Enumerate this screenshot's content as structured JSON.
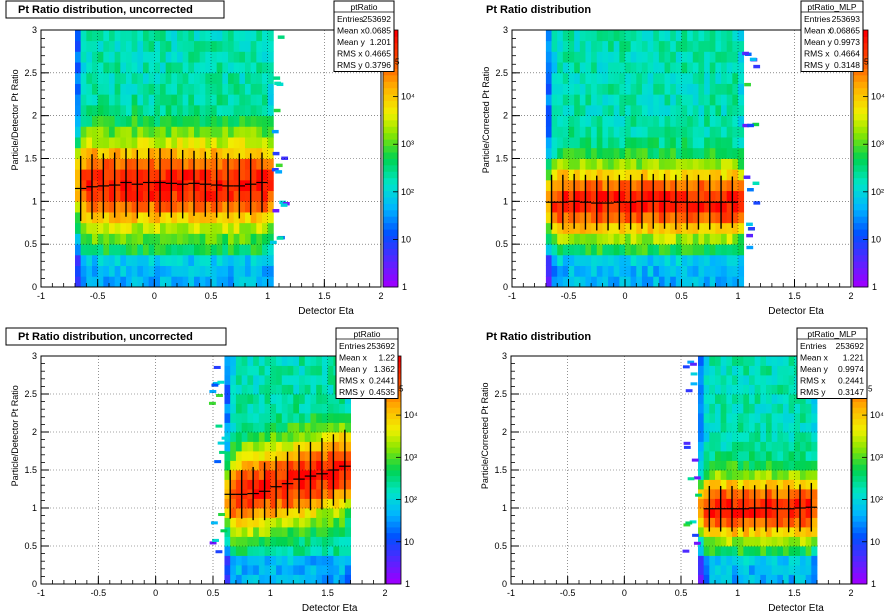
{
  "chart_data": [
    {
      "type": "heatmap",
      "title": "Pt Ratio distribution, uncorrected",
      "xlabel": "Detector Eta",
      "ylabel": "Particle/Detector Pt Ratio",
      "xlim": [
        -1,
        2
      ],
      "ylim": [
        0,
        3
      ],
      "x_ticks": [
        "-1",
        "-0.5",
        "0",
        "0.5",
        "1",
        "1.5",
        "2"
      ],
      "y_ticks": [
        "0",
        "0.5",
        "1",
        "1.5",
        "2",
        "2.5",
        "3"
      ],
      "z_log": true,
      "z_ticks": [
        "1",
        "10",
        "10²",
        "10³",
        "10⁴"
      ],
      "z_exponent_label": "5",
      "grid": true,
      "stats": {
        "name": "ptRatio",
        "rows": [
          [
            "Entries",
            "253692"
          ],
          [
            "Mean x",
            "0.0685"
          ],
          [
            "Mean y",
            "1.201"
          ],
          [
            "RMS x",
            "0.4665"
          ],
          [
            "RMS y",
            "0.3796"
          ]
        ]
      },
      "eta_range": [
        -0.7,
        1.05
      ],
      "profile_x": [
        -0.65,
        -0.55,
        -0.45,
        -0.35,
        -0.25,
        -0.15,
        -0.05,
        0.05,
        0.15,
        0.25,
        0.35,
        0.45,
        0.55,
        0.65,
        0.75,
        0.85,
        0.95
      ],
      "profile_y": [
        1.15,
        1.17,
        1.18,
        1.19,
        1.22,
        1.2,
        1.22,
        1.22,
        1.21,
        1.2,
        1.21,
        1.2,
        1.19,
        1.18,
        1.18,
        1.2,
        1.22
      ],
      "profile_err": [
        0.38,
        0.38,
        0.38,
        0.38,
        0.4,
        0.4,
        0.4,
        0.4,
        0.4,
        0.4,
        0.38,
        0.38,
        0.38,
        0.38,
        0.38,
        0.36,
        0.35
      ]
    },
    {
      "type": "heatmap",
      "title": "Pt Ratio distribution",
      "xlabel": "Detector Eta",
      "ylabel": "Particle/Corrected Pt Ratio",
      "xlim": [
        -1,
        2
      ],
      "ylim": [
        0,
        3
      ],
      "x_ticks": [
        "-1",
        "-0.5",
        "0",
        "0.5",
        "1",
        "1.5",
        "2"
      ],
      "y_ticks": [
        "0",
        "0.5",
        "1",
        "1.5",
        "2",
        "2.5",
        "3"
      ],
      "z_log": true,
      "z_ticks": [
        "1",
        "10",
        "10²",
        "10³",
        "10⁴"
      ],
      "z_exponent_label": "5",
      "grid": true,
      "stats": {
        "name": "ptRatio_MLP",
        "rows": [
          [
            "Entries",
            "253693"
          ],
          [
            "Mean x",
            "0.06865"
          ],
          [
            "Mean y",
            "0.9973"
          ],
          [
            "RMS x",
            "0.4664"
          ],
          [
            "RMS y",
            "0.3148"
          ]
        ]
      },
      "eta_range": [
        -0.7,
        1.05
      ],
      "profile_x": [
        -0.65,
        -0.55,
        -0.45,
        -0.35,
        -0.25,
        -0.15,
        -0.05,
        0.05,
        0.15,
        0.25,
        0.35,
        0.45,
        0.55,
        0.65,
        0.75,
        0.85,
        0.95
      ],
      "profile_y": [
        0.99,
        0.99,
        1.0,
        0.99,
        0.98,
        0.98,
        0.99,
        0.99,
        1.0,
        1.0,
        1.0,
        0.99,
        0.99,
        0.99,
        0.99,
        0.99,
        0.99
      ],
      "profile_err": [
        0.32,
        0.32,
        0.32,
        0.32,
        0.32,
        0.32,
        0.32,
        0.32,
        0.32,
        0.32,
        0.32,
        0.32,
        0.32,
        0.32,
        0.32,
        0.31,
        0.3
      ]
    },
    {
      "type": "heatmap",
      "title": "Pt Ratio distribution, uncorrected",
      "xlabel": "Detector Eta",
      "ylabel": "Particle/Detector Pt Ratio",
      "xlim": [
        -1,
        2
      ],
      "ylim": [
        0,
        3
      ],
      "x_ticks": [
        "-1",
        "-0.5",
        "0",
        "0.5",
        "1",
        "1.5",
        "2"
      ],
      "y_ticks": [
        "0",
        "0.5",
        "1",
        "1.5",
        "2",
        "2.5",
        "3"
      ],
      "z_log": true,
      "z_ticks": [
        "1",
        "10",
        "10²",
        "10³",
        "10⁴"
      ],
      "z_exponent_label": "5",
      "grid": true,
      "stats": {
        "name": "ptRatio",
        "rows": [
          [
            "Entries",
            "253692"
          ],
          [
            "Mean x",
            "1.22"
          ],
          [
            "Mean y",
            "1.362"
          ],
          [
            "RMS x",
            "0.2441"
          ],
          [
            "RMS y",
            "0.4535"
          ]
        ]
      },
      "eta_range": [
        0.6,
        1.7
      ],
      "profile_x": [
        0.65,
        0.75,
        0.85,
        0.95,
        1.05,
        1.15,
        1.25,
        1.35,
        1.45,
        1.55,
        1.65
      ],
      "profile_y": [
        1.18,
        1.18,
        1.19,
        1.22,
        1.28,
        1.32,
        1.38,
        1.42,
        1.45,
        1.5,
        1.55
      ],
      "profile_err": [
        0.32,
        0.32,
        0.35,
        0.38,
        0.4,
        0.42,
        0.45,
        0.45,
        0.47,
        0.47,
        0.48
      ]
    },
    {
      "type": "heatmap",
      "title": "Pt Ratio distribution",
      "xlabel": "Detector Eta",
      "ylabel": "Particle/Corrected Pt Ratio",
      "xlim": [
        -1,
        2
      ],
      "ylim": [
        0,
        3
      ],
      "x_ticks": [
        "-1",
        "-0.5",
        "0",
        "0.5",
        "1",
        "1.5",
        "2"
      ],
      "y_ticks": [
        "0",
        "0.5",
        "1",
        "1.5",
        "2",
        "2.5",
        "3"
      ],
      "z_log": true,
      "z_ticks": [
        "1",
        "10",
        "10²",
        "10³",
        "10⁴"
      ],
      "z_exponent_label": "5",
      "grid": true,
      "stats": {
        "name": "ptRatio_MLP",
        "rows": [
          [
            "Entries",
            "253692"
          ],
          [
            "Mean x",
            "1.221"
          ],
          [
            "Mean y",
            "0.9974"
          ],
          [
            "RMS x",
            "0.2441"
          ],
          [
            "RMS y",
            "0.3147"
          ]
        ]
      },
      "eta_range": [
        0.65,
        1.7
      ],
      "profile_x": [
        0.75,
        0.85,
        0.95,
        1.05,
        1.15,
        1.25,
        1.35,
        1.45,
        1.55,
        1.65
      ],
      "profile_y": [
        0.99,
        0.99,
        0.99,
        0.99,
        1.0,
        1.0,
        0.99,
        0.99,
        1.0,
        1.01
      ],
      "profile_err": [
        0.3,
        0.3,
        0.3,
        0.3,
        0.3,
        0.31,
        0.31,
        0.31,
        0.31,
        0.32
      ]
    }
  ]
}
